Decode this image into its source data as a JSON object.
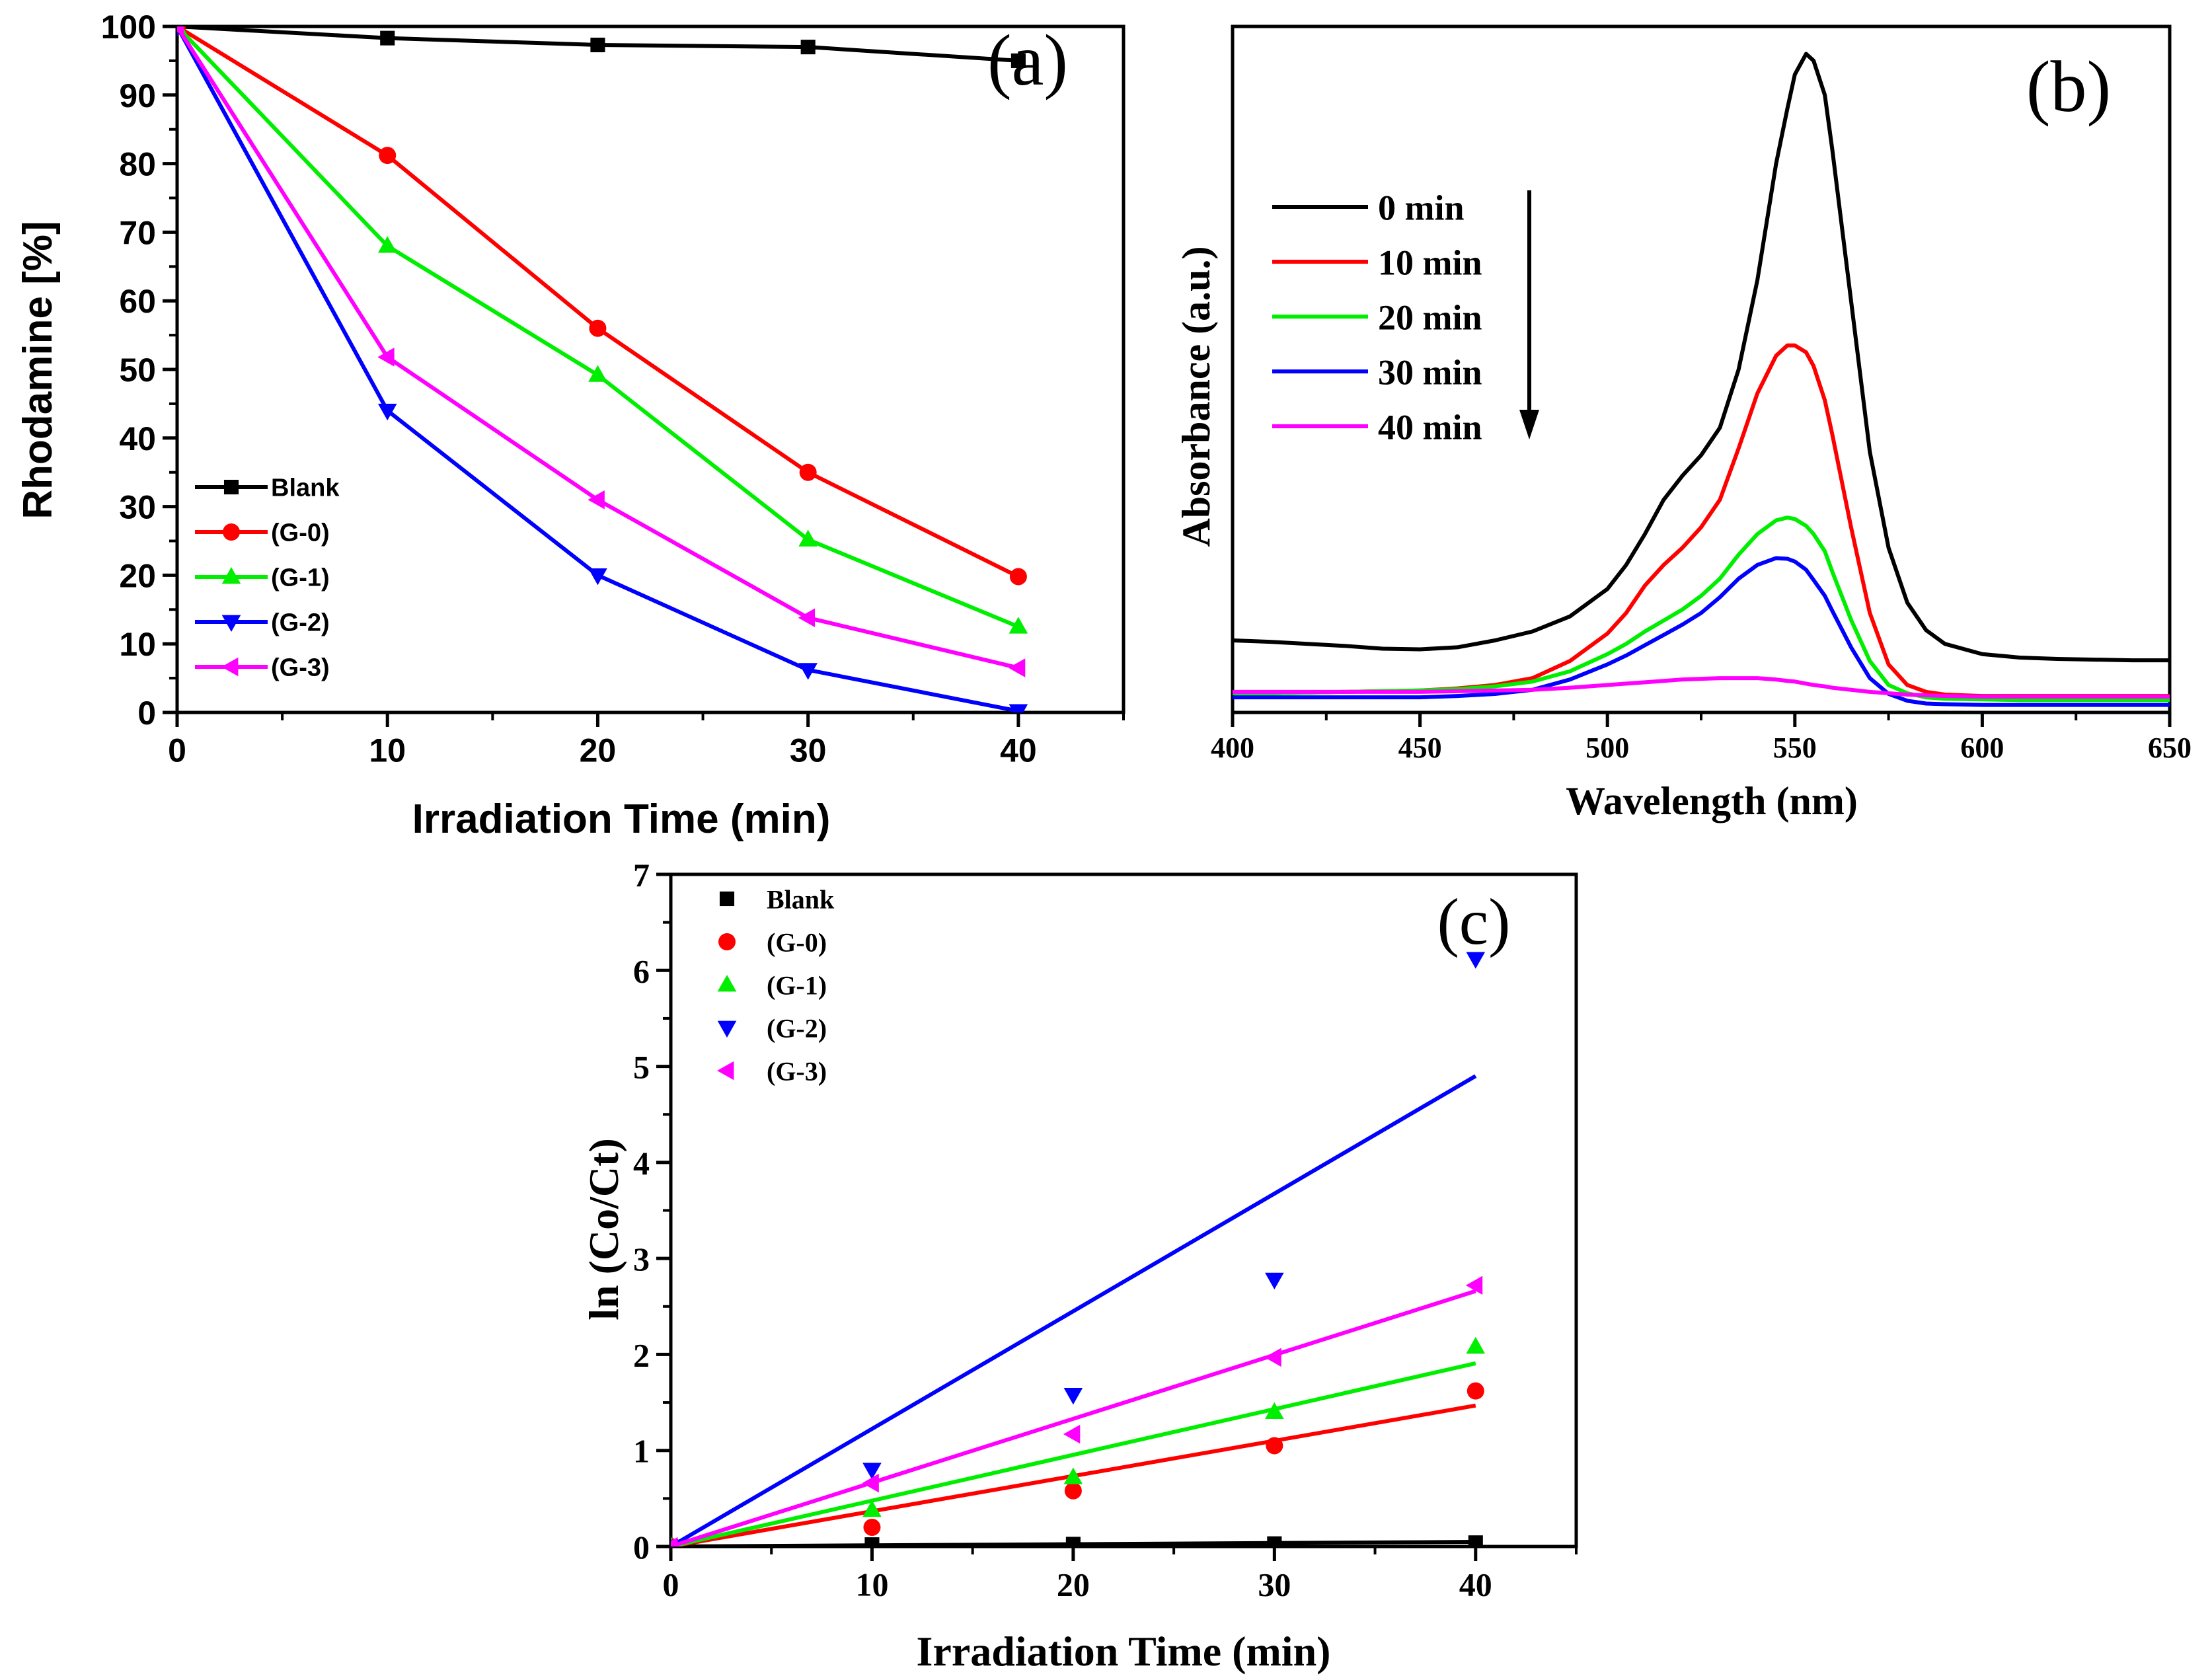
{
  "chart_data": [
    {
      "panel": "a",
      "type": "line",
      "panel_label": "(a)",
      "title": "",
      "xlabel": "Irradiation Time (min)",
      "ylabel": "Rhodamine [%]",
      "xlim": [
        0,
        45
      ],
      "ylim": [
        0,
        100
      ],
      "xticks": [
        0,
        10,
        20,
        30,
        40
      ],
      "yticks": [
        0,
        10,
        20,
        30,
        40,
        50,
        60,
        70,
        80,
        90,
        100
      ],
      "legend_position": "bottom-left",
      "x": [
        0,
        10,
        20,
        30,
        40
      ],
      "series": [
        {
          "name": "Blank",
          "color": "#000000",
          "marker": "square",
          "values": [
            100,
            98.3,
            97.3,
            97.0,
            95.0
          ]
        },
        {
          "name": "(G-0)",
          "color": "#ff0000",
          "marker": "circle",
          "values": [
            100,
            81.2,
            56.0,
            35.0,
            19.8
          ]
        },
        {
          "name": "(G-1)",
          "color": "#00ee00",
          "marker": "triangle-up",
          "values": [
            100,
            68.0,
            49.2,
            25.2,
            12.5
          ]
        },
        {
          "name": "(G-2)",
          "color": "#0000ff",
          "marker": "triangle-down",
          "values": [
            100,
            44.0,
            20.0,
            6.2,
            0.2
          ]
        },
        {
          "name": "(G-3)",
          "color": "#ff00ff",
          "marker": "triangle-left",
          "values": [
            100,
            51.8,
            31.0,
            13.8,
            6.5
          ]
        }
      ]
    },
    {
      "panel": "b",
      "type": "line",
      "panel_label": "(b)",
      "title": "",
      "xlabel": "Wavelength (nm)",
      "ylabel": "Absorbance (a.u.)",
      "xlim": [
        400,
        650
      ],
      "ylim": [
        0,
        1
      ],
      "xticks": [
        400,
        450,
        500,
        550,
        600,
        650
      ],
      "legend_position": "top-left",
      "arrow": "down",
      "x": [
        400,
        410,
        420,
        430,
        440,
        450,
        460,
        470,
        480,
        490,
        500,
        505,
        510,
        515,
        520,
        525,
        530,
        535,
        540,
        545,
        548,
        550,
        553,
        555,
        558,
        560,
        565,
        570,
        575,
        580,
        585,
        590,
        600,
        610,
        620,
        630,
        640,
        650
      ],
      "series": [
        {
          "name": "0 min",
          "color": "#000000",
          "values": [
            0.105,
            0.103,
            0.1,
            0.097,
            0.093,
            0.092,
            0.095,
            0.105,
            0.118,
            0.14,
            0.18,
            0.215,
            0.26,
            0.31,
            0.345,
            0.375,
            0.415,
            0.5,
            0.63,
            0.8,
            0.88,
            0.93,
            0.96,
            0.95,
            0.9,
            0.82,
            0.6,
            0.38,
            0.24,
            0.16,
            0.12,
            0.1,
            0.085,
            0.08,
            0.078,
            0.077,
            0.076,
            0.076
          ]
        },
        {
          "name": "10 min",
          "color": "#ff0000",
          "values": [
            0.028,
            0.028,
            0.029,
            0.03,
            0.031,
            0.032,
            0.035,
            0.04,
            0.05,
            0.075,
            0.115,
            0.145,
            0.185,
            0.215,
            0.24,
            0.27,
            0.31,
            0.385,
            0.465,
            0.52,
            0.535,
            0.535,
            0.525,
            0.505,
            0.455,
            0.405,
            0.27,
            0.145,
            0.07,
            0.04,
            0.03,
            0.026,
            0.024,
            0.024,
            0.024,
            0.024,
            0.024,
            0.024
          ]
        },
        {
          "name": "20 min",
          "color": "#00ee00",
          "values": [
            0.028,
            0.028,
            0.029,
            0.03,
            0.031,
            0.032,
            0.034,
            0.038,
            0.045,
            0.06,
            0.085,
            0.1,
            0.118,
            0.134,
            0.15,
            0.17,
            0.195,
            0.23,
            0.26,
            0.28,
            0.284,
            0.282,
            0.272,
            0.26,
            0.235,
            0.205,
            0.135,
            0.075,
            0.04,
            0.028,
            0.022,
            0.02,
            0.019,
            0.018,
            0.018,
            0.018,
            0.018,
            0.018
          ]
        },
        {
          "name": "30 min",
          "color": "#0000ff",
          "values": [
            0.022,
            0.022,
            0.022,
            0.022,
            0.022,
            0.022,
            0.024,
            0.027,
            0.033,
            0.048,
            0.07,
            0.083,
            0.098,
            0.113,
            0.128,
            0.145,
            0.168,
            0.195,
            0.215,
            0.225,
            0.224,
            0.22,
            0.208,
            0.193,
            0.17,
            0.148,
            0.095,
            0.05,
            0.027,
            0.017,
            0.013,
            0.012,
            0.011,
            0.011,
            0.011,
            0.011,
            0.011,
            0.011
          ]
        },
        {
          "name": "40 min",
          "color": "#ff00ff",
          "values": [
            0.03,
            0.03,
            0.03,
            0.03,
            0.03,
            0.03,
            0.031,
            0.032,
            0.033,
            0.036,
            0.04,
            0.042,
            0.044,
            0.046,
            0.048,
            0.049,
            0.05,
            0.05,
            0.05,
            0.048,
            0.046,
            0.045,
            0.042,
            0.04,
            0.038,
            0.036,
            0.033,
            0.03,
            0.028,
            0.026,
            0.025,
            0.024,
            0.023,
            0.023,
            0.023,
            0.023,
            0.023,
            0.023
          ]
        }
      ]
    },
    {
      "panel": "c",
      "type": "scatter",
      "panel_label": "(c)",
      "title": "",
      "xlabel": "Irradiation Time (min)",
      "ylabel": "ln (Co/Ct)",
      "xlim": [
        0,
        45
      ],
      "ylim": [
        0,
        7
      ],
      "xticks": [
        0,
        10,
        20,
        30,
        40
      ],
      "yticks": [
        0,
        1,
        2,
        3,
        4,
        5,
        6,
        7
      ],
      "legend_position": "top-left",
      "x": [
        0,
        10,
        20,
        30,
        40
      ],
      "series": [
        {
          "name": "Blank",
          "color": "#000000",
          "marker": "square",
          "values": [
            0,
            0.02,
            0.025,
            0.03,
            0.04
          ],
          "fit_slope": 0.0012
        },
        {
          "name": "(G-0)",
          "color": "#ff0000",
          "marker": "circle",
          "values": [
            0,
            0.2,
            0.58,
            1.05,
            1.62
          ],
          "fit_slope": 0.0367
        },
        {
          "name": "(G-1)",
          "color": "#00ee00",
          "marker": "triangle-up",
          "values": [
            0,
            0.38,
            0.72,
            1.4,
            2.08
          ],
          "fit_slope": 0.0477
        },
        {
          "name": "(G-2)",
          "color": "#0000ff",
          "marker": "triangle-down",
          "values": [
            0,
            0.8,
            1.58,
            2.78,
            6.12
          ],
          "fit_slope": 0.1225
        },
        {
          "name": "(G-3)",
          "color": "#ff00ff",
          "marker": "triangle-left",
          "values": [
            0,
            0.66,
            1.17,
            1.97,
            2.72
          ],
          "fit_slope": 0.0665
        }
      ]
    }
  ]
}
